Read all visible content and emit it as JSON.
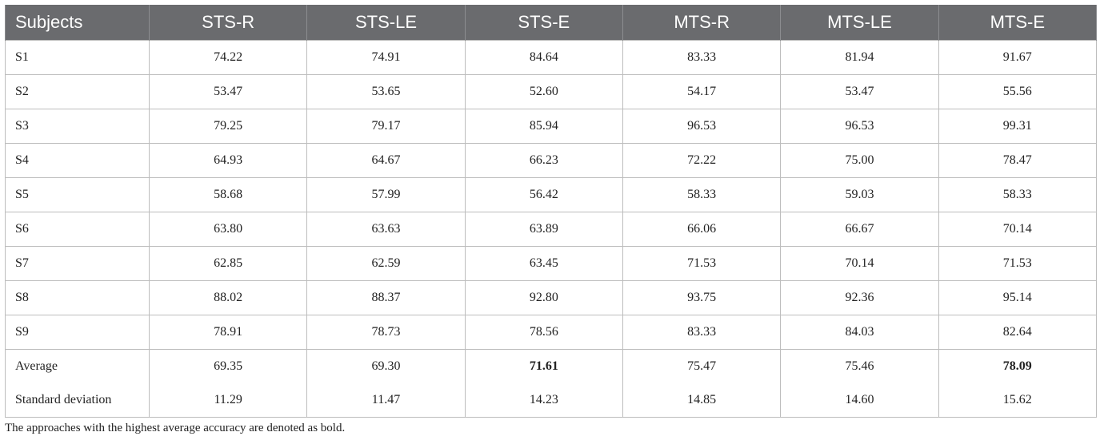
{
  "table": {
    "headers": [
      "Subjects",
      "STS-R",
      "STS-LE",
      "STS-E",
      "MTS-R",
      "MTS-LE",
      "MTS-E"
    ],
    "rows": [
      {
        "label": "S1",
        "values": [
          "74.22",
          "74.91",
          "84.64",
          "83.33",
          "81.94",
          "91.67"
        ]
      },
      {
        "label": "S2",
        "values": [
          "53.47",
          "53.65",
          "52.60",
          "54.17",
          "53.47",
          "55.56"
        ]
      },
      {
        "label": "S3",
        "values": [
          "79.25",
          "79.17",
          "85.94",
          "96.53",
          "96.53",
          "99.31"
        ]
      },
      {
        "label": "S4",
        "values": [
          "64.93",
          "64.67",
          "66.23",
          "72.22",
          "75.00",
          "78.47"
        ]
      },
      {
        "label": "S5",
        "values": [
          "58.68",
          "57.99",
          "56.42",
          "58.33",
          "59.03",
          "58.33"
        ]
      },
      {
        "label": "S6",
        "values": [
          "63.80",
          "63.63",
          "63.89",
          "66.06",
          "66.67",
          "70.14"
        ]
      },
      {
        "label": "S7",
        "values": [
          "62.85",
          "62.59",
          "63.45",
          "71.53",
          "70.14",
          "71.53"
        ]
      },
      {
        "label": "S8",
        "values": [
          "88.02",
          "88.37",
          "92.80",
          "93.75",
          "92.36",
          "95.14"
        ]
      },
      {
        "label": "S9",
        "values": [
          "78.91",
          "78.73",
          "78.56",
          "83.33",
          "84.03",
          "82.64"
        ]
      }
    ],
    "average": {
      "label": "Average",
      "values": [
        "69.35",
        "69.30",
        "71.61",
        "75.47",
        "75.46",
        "78.09"
      ]
    },
    "std": {
      "label": "Standard deviation",
      "values": [
        "11.29",
        "11.47",
        "14.23",
        "14.85",
        "14.60",
        "15.62"
      ]
    }
  },
  "footnote": "The approaches with the highest average accuracy are denoted as bold.",
  "colors": {
    "header_bg": "#6a6b6e",
    "header_text": "#ffffff",
    "grid": "#bdbdbd"
  }
}
